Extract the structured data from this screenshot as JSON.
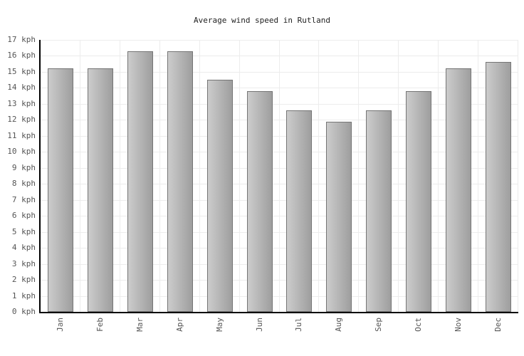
{
  "chart_data": {
    "type": "bar",
    "title": "Average wind speed in Rutland",
    "categories": [
      "Jan",
      "Feb",
      "Mar",
      "Apr",
      "May",
      "Jun",
      "Jul",
      "Aug",
      "Sep",
      "Oct",
      "Nov",
      "Dec"
    ],
    "values": [
      15.2,
      15.2,
      16.3,
      16.3,
      14.5,
      13.8,
      12.6,
      11.9,
      12.6,
      13.8,
      15.2,
      15.6
    ],
    "unit": "kph",
    "xlabel": "",
    "ylabel": "",
    "ylim": [
      0,
      17
    ],
    "y_tick_step": 1,
    "y_ticks": [
      "0 kph",
      "1 kph",
      "2 kph",
      "3 kph",
      "4 kph",
      "5 kph",
      "6 kph",
      "7 kph",
      "8 kph",
      "9 kph",
      "10 kph",
      "11 kph",
      "12 kph",
      "13 kph",
      "14 kph",
      "15 kph",
      "16 kph",
      "17 kph"
    ],
    "grid": true,
    "legend_position": "none",
    "colors": {
      "background": "#ffffff",
      "bar_gradient_start": "#cccccc",
      "bar_gradient_end": "#9e9e9e",
      "bar_border": "#757575",
      "axis_line": "#000000",
      "gridline": "#ececec",
      "tick_label": "#555555",
      "title": "#222222"
    }
  }
}
